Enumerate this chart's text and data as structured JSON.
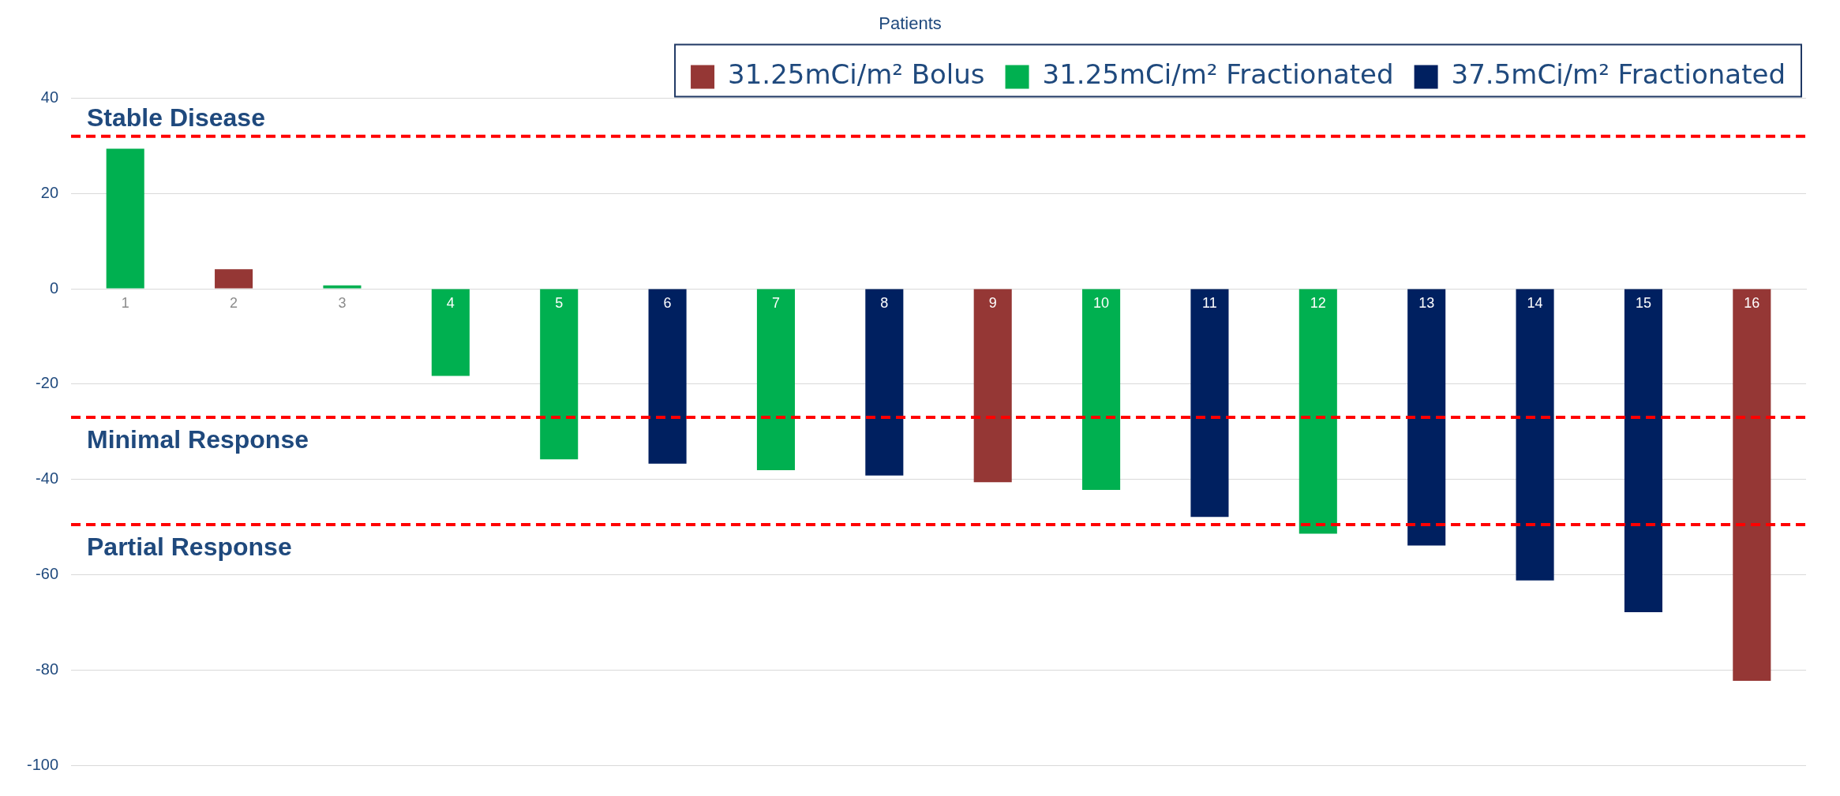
{
  "chart_data": {
    "type": "bar",
    "xlabel": "Patients",
    "categories": [
      "1",
      "2",
      "3",
      "4",
      "5",
      "6",
      "7",
      "8",
      "9",
      "10",
      "11",
      "12",
      "13",
      "14",
      "15",
      "16"
    ],
    "series": [
      {
        "name": "31.25mCi/m² Bolus",
        "color": "#953735",
        "values": [
          null,
          4.1,
          null,
          null,
          null,
          null,
          null,
          null,
          -40.6,
          null,
          null,
          null,
          null,
          null,
          null,
          -82.3
        ]
      },
      {
        "name": "31.25mCi/m² Fractionated",
        "color": "#00b050",
        "values": [
          29.4,
          null,
          0.7,
          -18.3,
          -35.8,
          null,
          -38.1,
          null,
          null,
          -42.2,
          null,
          -51.4,
          null,
          null,
          null,
          null
        ]
      },
      {
        "name": "37.5mCi/m² Fractionated",
        "color": "#002060",
        "values": [
          null,
          null,
          null,
          null,
          null,
          -36.7,
          null,
          -39.2,
          null,
          null,
          -47.9,
          null,
          -53.9,
          -61.2,
          -67.9,
          null
        ]
      }
    ],
    "ylim": [
      -100,
      40
    ],
    "yticks": [
      -100,
      -80,
      -60,
      -40,
      -20,
      0,
      20,
      40
    ],
    "grid": "y",
    "legend": "top right",
    "ref_lines": [
      {
        "axis": "y",
        "value": 32,
        "label": "Stable Disease",
        "color": "#ff0000",
        "line_style": "dashed"
      },
      {
        "axis": "y",
        "value": -27,
        "label": "Minimal Response",
        "color": "#ff0000",
        "line_style": "dashed"
      },
      {
        "axis": "y",
        "value": -49.5,
        "label": "Partial Response",
        "color": "#ff0000",
        "line_style": "dashed"
      }
    ]
  }
}
